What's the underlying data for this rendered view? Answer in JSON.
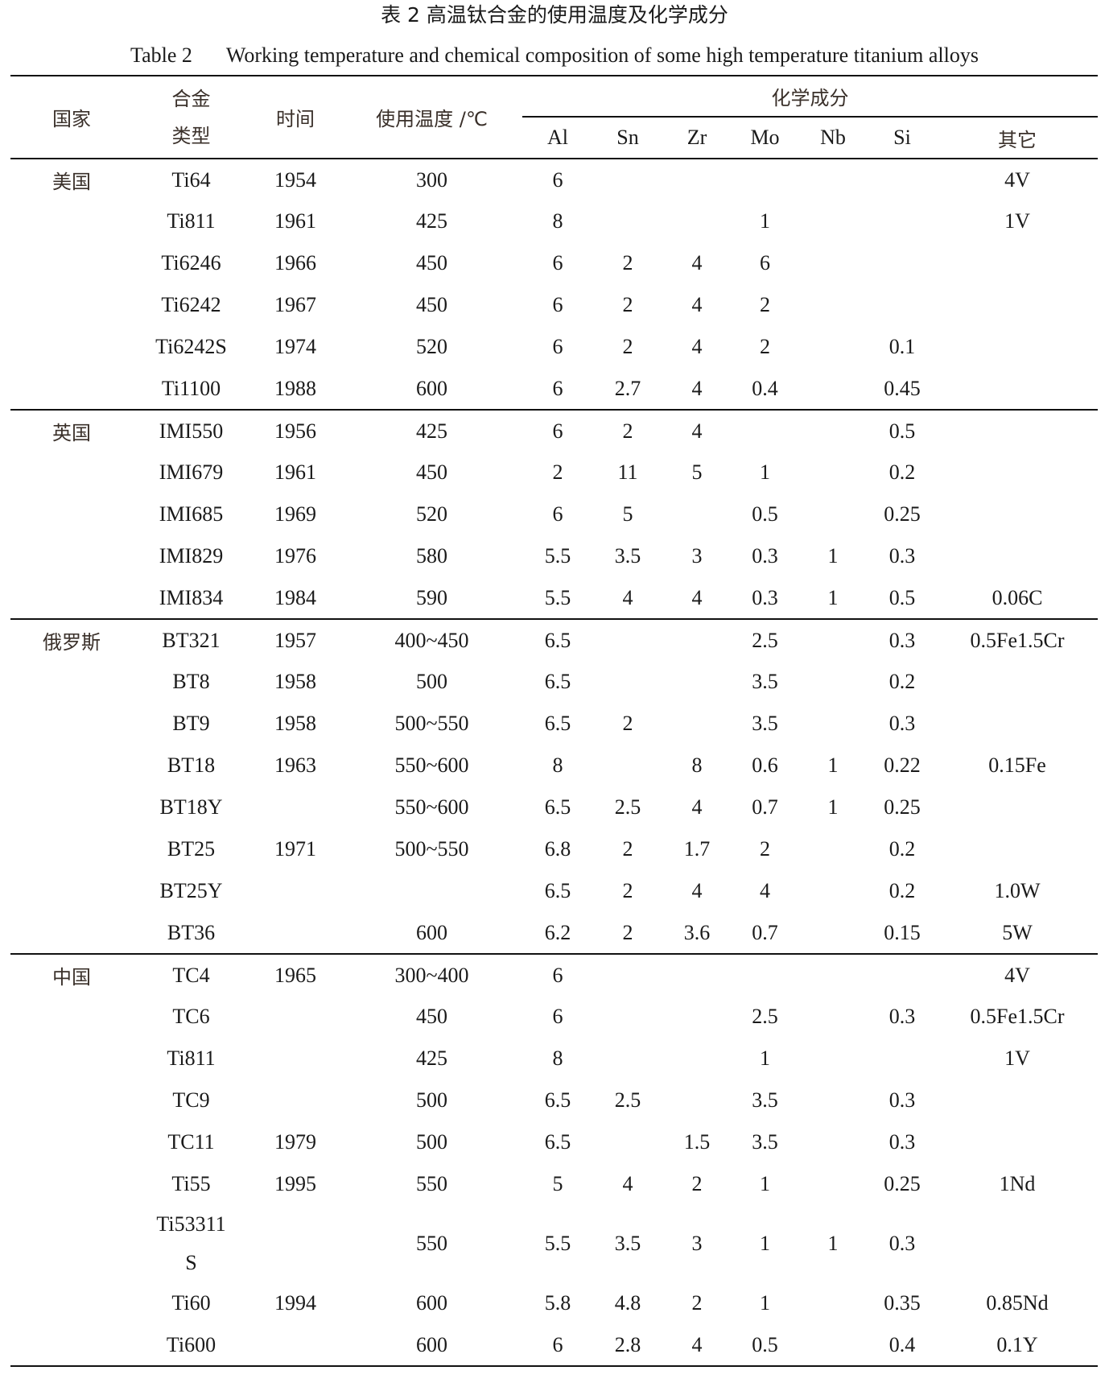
{
  "title_cn": "表 2  高温钛合金的使用温度及化学成分",
  "title_en_label": "Table 2",
  "title_en": "Working temperature and chemical composition of some high temperature titanium alloys",
  "headers": {
    "country": "国家",
    "alloy_type_1": "合金",
    "alloy_type_2": "类型",
    "time": "时间",
    "temp": "使用温度  /℃",
    "chem": "化学成分",
    "elements": [
      "Al",
      "Sn",
      "Zr",
      "Mo",
      "Nb",
      "Si",
      "其它"
    ]
  },
  "groups": [
    {
      "country": "美国",
      "rows": [
        [
          "Ti64",
          "1954",
          "300",
          "6",
          "",
          "",
          "",
          "",
          "",
          "4V"
        ],
        [
          "Ti811",
          "1961",
          "425",
          "8",
          "",
          "",
          "1",
          "",
          "",
          "1V"
        ],
        [
          "Ti6246",
          "1966",
          "450",
          "6",
          "2",
          "4",
          "6",
          "",
          "",
          ""
        ],
        [
          "Ti6242",
          "1967",
          "450",
          "6",
          "2",
          "4",
          "2",
          "",
          "",
          ""
        ],
        [
          "Ti6242S",
          "1974",
          "520",
          "6",
          "2",
          "4",
          "2",
          "",
          "0.1",
          ""
        ],
        [
          "Ti1100",
          "1988",
          "600",
          "6",
          "2.7",
          "4",
          "0.4",
          "",
          "0.45",
          ""
        ]
      ]
    },
    {
      "country": "英国",
      "rows": [
        [
          "IMI550",
          "1956",
          "425",
          "6",
          "2",
          "4",
          "",
          "",
          "0.5",
          ""
        ],
        [
          "IMI679",
          "1961",
          "450",
          "2",
          "11",
          "5",
          "1",
          "",
          "0.2",
          ""
        ],
        [
          "IMI685",
          "1969",
          "520",
          "6",
          "5",
          "",
          "0.5",
          "",
          "0.25",
          ""
        ],
        [
          "IMI829",
          "1976",
          "580",
          "5.5",
          "3.5",
          "3",
          "0.3",
          "1",
          "0.3",
          ""
        ],
        [
          "IMI834",
          "1984",
          "590",
          "5.5",
          "4",
          "4",
          "0.3",
          "1",
          "0.5",
          "0.06C"
        ]
      ]
    },
    {
      "country": "俄罗斯",
      "rows": [
        [
          "BT321",
          "1957",
          "400~450",
          "6.5",
          "",
          "",
          "2.5",
          "",
          "0.3",
          "0.5Fe1.5Cr"
        ],
        [
          "BT8",
          "1958",
          "500",
          "6.5",
          "",
          "",
          "3.5",
          "",
          "0.2",
          ""
        ],
        [
          "BT9",
          "1958",
          "500~550",
          "6.5",
          "2",
          "",
          "3.5",
          "",
          "0.3",
          ""
        ],
        [
          "BT18",
          "1963",
          "550~600",
          "8",
          "",
          "8",
          "0.6",
          "1",
          "0.22",
          "0.15Fe"
        ],
        [
          "BT18Y",
          "",
          "550~600",
          "6.5",
          "2.5",
          "4",
          "0.7",
          "1",
          "0.25",
          ""
        ],
        [
          "BT25",
          "1971",
          "500~550",
          "6.8",
          "2",
          "1.7",
          "2",
          "",
          "0.2",
          ""
        ],
        [
          "BT25Y",
          "",
          "",
          "6.5",
          "2",
          "4",
          "4",
          "",
          "0.2",
          "1.0W"
        ],
        [
          "BT36",
          "",
          "600",
          "6.2",
          "2",
          "3.6",
          "0.7",
          "",
          "0.15",
          "5W"
        ]
      ]
    },
    {
      "country": "中国",
      "rows": [
        [
          "TC4",
          "1965",
          "300~400",
          "6",
          "",
          "",
          "",
          "",
          "",
          "4V"
        ],
        [
          "TC6",
          "",
          "450",
          "6",
          "",
          "",
          "2.5",
          "",
          "0.3",
          "0.5Fe1.5Cr"
        ],
        [
          "Ti811",
          "",
          "425",
          "8",
          "",
          "",
          "1",
          "",
          "",
          "1V"
        ],
        [
          "TC9",
          "",
          "500",
          "6.5",
          "2.5",
          "",
          "3.5",
          "",
          "0.3",
          ""
        ],
        [
          "TC11",
          "1979",
          "500",
          "6.5",
          "",
          "1.5",
          "3.5",
          "",
          "0.3",
          ""
        ],
        [
          "Ti55",
          "1995",
          "550",
          "5",
          "4",
          "2",
          "1",
          "",
          "0.25",
          "1Nd"
        ],
        [
          "Ti53311S",
          "",
          "550",
          "5.5",
          "3.5",
          "3",
          "1",
          "1",
          "0.3",
          ""
        ],
        [
          "Ti60",
          "1994",
          "600",
          "5.8",
          "4.8",
          "2",
          "1",
          "",
          "0.35",
          "0.85Nd"
        ],
        [
          "Ti600",
          "",
          "600",
          "6",
          "2.8",
          "4",
          "0.5",
          "",
          "0.4",
          "0.1Y"
        ]
      ]
    }
  ]
}
